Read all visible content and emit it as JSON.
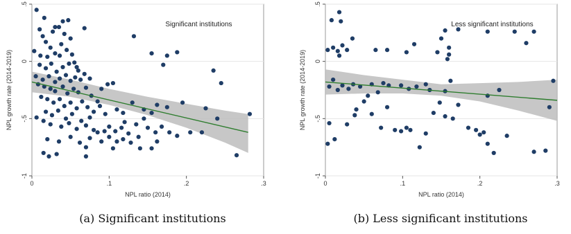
{
  "chart_data": [
    {
      "type": "scatter",
      "title": "Significant institutions",
      "xlabel": "NPL ratio (2014)",
      "ylabel": "NPL growth rate (2014-2019)",
      "xlim": [
        0,
        0.3
      ],
      "ylim": [
        -1,
        0.5
      ],
      "xticks": [
        0,
        0.1,
        0.2,
        0.3
      ],
      "xtick_labels": [
        "0",
        ".1",
        ".2",
        ".3"
      ],
      "yticks": [
        -1,
        -0.5,
        0,
        0.5
      ],
      "ytick_labels": [
        "-1",
        "-.5",
        "0",
        ".5"
      ],
      "grid": "horizontal",
      "marker_color": "#1f3d66",
      "fit_color": "#2e7d2e",
      "ci_color": "#bdbdbd",
      "fit_line": {
        "x": [
          0,
          0.28
        ],
        "y": [
          -0.18,
          -0.62
        ]
      },
      "ci_band": {
        "x": [
          0,
          0.05,
          0.1,
          0.15,
          0.2,
          0.25,
          0.28
        ],
        "lower": [
          -0.27,
          -0.31,
          -0.38,
          -0.47,
          -0.58,
          -0.71,
          -0.8
        ],
        "upper": [
          -0.09,
          -0.16,
          -0.24,
          -0.31,
          -0.37,
          -0.43,
          -0.46
        ]
      },
      "points": [
        {
          "x": 0.006,
          "y": 0.45
        },
        {
          "x": 0.016,
          "y": 0.38
        },
        {
          "x": 0.01,
          "y": 0.28
        },
        {
          "x": 0.014,
          "y": 0.22
        },
        {
          "x": 0.027,
          "y": 0.26
        },
        {
          "x": 0.018,
          "y": 0.17
        },
        {
          "x": 0.024,
          "y": 0.12
        },
        {
          "x": 0.03,
          "y": 0.3
        },
        {
          "x": 0.035,
          "y": 0.3
        },
        {
          "x": 0.04,
          "y": 0.35
        },
        {
          "x": 0.047,
          "y": 0.36
        },
        {
          "x": 0.042,
          "y": 0.24
        },
        {
          "x": 0.038,
          "y": 0.15
        },
        {
          "x": 0.05,
          "y": 0.2
        },
        {
          "x": 0.003,
          "y": 0.09
        },
        {
          "x": 0.011,
          "y": 0.05
        },
        {
          "x": 0.02,
          "y": 0.04
        },
        {
          "x": 0.03,
          "y": 0.07
        },
        {
          "x": 0.036,
          "y": 0.05
        },
        {
          "x": 0.045,
          "y": 0.1
        },
        {
          "x": 0.052,
          "y": 0.06
        },
        {
          "x": 0.055,
          "y": -0.01
        },
        {
          "x": 0.068,
          "y": 0.29
        },
        {
          "x": 0.01,
          "y": -0.03
        },
        {
          "x": 0.018,
          "y": -0.06
        },
        {
          "x": 0.025,
          "y": -0.02
        },
        {
          "x": 0.032,
          "y": -0.09
        },
        {
          "x": 0.04,
          "y": -0.05
        },
        {
          "x": 0.048,
          "y": -0.02
        },
        {
          "x": 0.058,
          "y": -0.05
        },
        {
          "x": 0.06,
          "y": -0.08
        },
        {
          "x": 0.005,
          "y": -0.13
        },
        {
          "x": 0.014,
          "y": -0.16
        },
        {
          "x": 0.022,
          "y": -0.13
        },
        {
          "x": 0.03,
          "y": -0.18
        },
        {
          "x": 0.036,
          "y": -0.15
        },
        {
          "x": 0.044,
          "y": -0.12
        },
        {
          "x": 0.05,
          "y": -0.17
        },
        {
          "x": 0.056,
          "y": -0.14
        },
        {
          "x": 0.063,
          "y": -0.16
        },
        {
          "x": 0.068,
          "y": -0.11
        },
        {
          "x": 0.075,
          "y": -0.15
        },
        {
          "x": 0.008,
          "y": -0.2
        },
        {
          "x": 0.016,
          "y": -0.22
        },
        {
          "x": 0.024,
          "y": -0.24
        },
        {
          "x": 0.03,
          "y": -0.26
        },
        {
          "x": 0.04,
          "y": -0.22
        },
        {
          "x": 0.046,
          "y": -0.28
        },
        {
          "x": 0.054,
          "y": -0.24
        },
        {
          "x": 0.06,
          "y": -0.27
        },
        {
          "x": 0.07,
          "y": -0.23
        },
        {
          "x": 0.077,
          "y": -0.3
        },
        {
          "x": 0.09,
          "y": -0.24
        },
        {
          "x": 0.098,
          "y": -0.2
        },
        {
          "x": 0.105,
          "y": -0.19
        },
        {
          "x": 0.085,
          "y": -0.35
        },
        {
          "x": 0.012,
          "y": -0.31
        },
        {
          "x": 0.02,
          "y": -0.33
        },
        {
          "x": 0.028,
          "y": -0.36
        },
        {
          "x": 0.036,
          "y": -0.33
        },
        {
          "x": 0.042,
          "y": -0.39
        },
        {
          "x": 0.05,
          "y": -0.36
        },
        {
          "x": 0.058,
          "y": -0.41
        },
        {
          "x": 0.065,
          "y": -0.35
        },
        {
          "x": 0.072,
          "y": -0.4
        },
        {
          "x": 0.08,
          "y": -0.44
        },
        {
          "x": 0.088,
          "y": -0.39
        },
        {
          "x": 0.095,
          "y": -0.46
        },
        {
          "x": 0.11,
          "y": -0.42
        },
        {
          "x": 0.018,
          "y": -0.44
        },
        {
          "x": 0.026,
          "y": -0.47
        },
        {
          "x": 0.034,
          "y": -0.43
        },
        {
          "x": 0.044,
          "y": -0.5
        },
        {
          "x": 0.052,
          "y": -0.46
        },
        {
          "x": 0.064,
          "y": -0.52
        },
        {
          "x": 0.075,
          "y": -0.49
        },
        {
          "x": 0.006,
          "y": -0.49
        },
        {
          "x": 0.015,
          "y": -0.52
        },
        {
          "x": 0.024,
          "y": -0.55
        },
        {
          "x": 0.038,
          "y": -0.57
        },
        {
          "x": 0.048,
          "y": -0.54
        },
        {
          "x": 0.058,
          "y": -0.59
        },
        {
          "x": 0.07,
          "y": -0.56
        },
        {
          "x": 0.08,
          "y": -0.6
        },
        {
          "x": 0.094,
          "y": -0.61
        },
        {
          "x": 0.1,
          "y": -0.57
        },
        {
          "x": 0.108,
          "y": -0.61
        },
        {
          "x": 0.116,
          "y": -0.58
        },
        {
          "x": 0.12,
          "y": -0.53
        },
        {
          "x": 0.125,
          "y": -0.63
        },
        {
          "x": 0.135,
          "y": -0.55
        },
        {
          "x": 0.145,
          "y": -0.5
        },
        {
          "x": 0.15,
          "y": -0.58
        },
        {
          "x": 0.16,
          "y": -0.62
        },
        {
          "x": 0.168,
          "y": -0.57
        },
        {
          "x": 0.02,
          "y": -0.68
        },
        {
          "x": 0.035,
          "y": -0.7
        },
        {
          "x": 0.05,
          "y": -0.66
        },
        {
          "x": 0.062,
          "y": -0.71
        },
        {
          "x": 0.075,
          "y": -0.67
        },
        {
          "x": 0.09,
          "y": -0.7
        },
        {
          "x": 0.1,
          "y": -0.66
        },
        {
          "x": 0.11,
          "y": -0.7
        },
        {
          "x": 0.118,
          "y": -0.68
        },
        {
          "x": 0.128,
          "y": -0.71
        },
        {
          "x": 0.138,
          "y": -0.66
        },
        {
          "x": 0.015,
          "y": -0.8
        },
        {
          "x": 0.022,
          "y": -0.83
        },
        {
          "x": 0.032,
          "y": -0.81
        },
        {
          "x": 0.07,
          "y": -0.83
        },
        {
          "x": 0.118,
          "y": -0.45
        },
        {
          "x": 0.13,
          "y": -0.36
        },
        {
          "x": 0.145,
          "y": -0.42
        },
        {
          "x": 0.155,
          "y": -0.45
        },
        {
          "x": 0.162,
          "y": -0.38
        },
        {
          "x": 0.175,
          "y": -0.4
        },
        {
          "x": 0.132,
          "y": 0.22
        },
        {
          "x": 0.155,
          "y": 0.07
        },
        {
          "x": 0.175,
          "y": 0.05
        },
        {
          "x": 0.188,
          "y": 0.08
        },
        {
          "x": 0.17,
          "y": -0.03
        },
        {
          "x": 0.195,
          "y": -0.36
        },
        {
          "x": 0.178,
          "y": -0.62
        },
        {
          "x": 0.188,
          "y": -0.65
        },
        {
          "x": 0.205,
          "y": -0.62
        },
        {
          "x": 0.22,
          "y": -0.62
        },
        {
          "x": 0.225,
          "y": -0.41
        },
        {
          "x": 0.235,
          "y": -0.08
        },
        {
          "x": 0.245,
          "y": -0.19
        },
        {
          "x": 0.24,
          "y": -0.5
        },
        {
          "x": 0.265,
          "y": -0.82
        },
        {
          "x": 0.282,
          "y": -0.46
        },
        {
          "x": 0.085,
          "y": -0.62
        },
        {
          "x": 0.14,
          "y": -0.76
        },
        {
          "x": 0.155,
          "y": -0.76
        },
        {
          "x": 0.162,
          "y": -0.7
        },
        {
          "x": 0.07,
          "y": -0.75
        },
        {
          "x": 0.105,
          "y": -0.76
        }
      ]
    },
    {
      "type": "scatter",
      "title": "Less significant institutions",
      "xlabel": "NPL ratio (2014)",
      "ylabel": "NPL growth rate (2014-2019)",
      "xlim": [
        0,
        0.3
      ],
      "ylim": [
        -1,
        0.5
      ],
      "xticks": [
        0,
        0.1,
        0.2,
        0.3
      ],
      "xtick_labels": [
        "0",
        ".1",
        ".2",
        ".3"
      ],
      "yticks": [
        -1,
        -0.5,
        0,
        0.5
      ],
      "ytick_labels": [
        "-1",
        "-.5",
        "0",
        ".5"
      ],
      "grid": "horizontal",
      "marker_color": "#1f3d66",
      "fit_color": "#2e7d2e",
      "ci_color": "#bdbdbd",
      "fit_line": {
        "x": [
          0,
          0.3
        ],
        "y": [
          -0.18,
          -0.34
        ]
      },
      "ci_band": {
        "x": [
          0,
          0.05,
          0.1,
          0.15,
          0.2,
          0.25,
          0.3
        ],
        "lower": [
          -0.29,
          -0.28,
          -0.28,
          -0.3,
          -0.35,
          -0.43,
          -0.52
        ],
        "upper": [
          -0.07,
          -0.12,
          -0.16,
          -0.2,
          -0.19,
          -0.18,
          -0.16
        ]
      },
      "points": [
        {
          "x": 0.008,
          "y": 0.36
        },
        {
          "x": 0.018,
          "y": 0.43
        },
        {
          "x": 0.02,
          "y": 0.35
        },
        {
          "x": 0.003,
          "y": 0.1
        },
        {
          "x": 0.01,
          "y": 0.12
        },
        {
          "x": 0.016,
          "y": 0.09
        },
        {
          "x": 0.022,
          "y": 0.14
        },
        {
          "x": 0.028,
          "y": 0.1
        },
        {
          "x": 0.018,
          "y": 0.05
        },
        {
          "x": 0.035,
          "y": 0.2
        },
        {
          "x": 0.065,
          "y": 0.1
        },
        {
          "x": 0.08,
          "y": 0.1
        },
        {
          "x": 0.105,
          "y": 0.08
        },
        {
          "x": 0.115,
          "y": 0.15
        },
        {
          "x": 0.15,
          "y": 0.2
        },
        {
          "x": 0.155,
          "y": 0.27
        },
        {
          "x": 0.16,
          "y": 0.12
        },
        {
          "x": 0.172,
          "y": 0.28
        },
        {
          "x": 0.21,
          "y": 0.26
        },
        {
          "x": 0.245,
          "y": 0.26
        },
        {
          "x": 0.27,
          "y": 0.26
        },
        {
          "x": 0.26,
          "y": 0.16
        },
        {
          "x": 0.16,
          "y": 0.06
        },
        {
          "x": 0.145,
          "y": 0.08
        },
        {
          "x": 0.158,
          "y": 0.02
        },
        {
          "x": 0.005,
          "y": -0.22
        },
        {
          "x": 0.01,
          "y": -0.16
        },
        {
          "x": 0.016,
          "y": -0.25
        },
        {
          "x": 0.022,
          "y": -0.21
        },
        {
          "x": 0.03,
          "y": -0.24
        },
        {
          "x": 0.036,
          "y": -0.2
        },
        {
          "x": 0.045,
          "y": -0.22
        },
        {
          "x": 0.055,
          "y": -0.3
        },
        {
          "x": 0.06,
          "y": -0.2
        },
        {
          "x": 0.068,
          "y": -0.27
        },
        {
          "x": 0.075,
          "y": -0.19
        },
        {
          "x": 0.082,
          "y": -0.21
        },
        {
          "x": 0.098,
          "y": -0.21
        },
        {
          "x": 0.108,
          "y": -0.24
        },
        {
          "x": 0.118,
          "y": -0.22
        },
        {
          "x": 0.13,
          "y": -0.2
        },
        {
          "x": 0.135,
          "y": -0.25
        },
        {
          "x": 0.155,
          "y": -0.26
        },
        {
          "x": 0.162,
          "y": -0.17
        },
        {
          "x": 0.05,
          "y": -0.35
        },
        {
          "x": 0.04,
          "y": -0.42
        },
        {
          "x": 0.038,
          "y": -0.47
        },
        {
          "x": 0.028,
          "y": -0.55
        },
        {
          "x": 0.005,
          "y": -0.54
        },
        {
          "x": 0.003,
          "y": -0.72
        },
        {
          "x": 0.012,
          "y": -0.68
        },
        {
          "x": 0.06,
          "y": -0.46
        },
        {
          "x": 0.072,
          "y": -0.58
        },
        {
          "x": 0.09,
          "y": -0.6
        },
        {
          "x": 0.098,
          "y": -0.61
        },
        {
          "x": 0.105,
          "y": -0.58
        },
        {
          "x": 0.11,
          "y": -0.6
        },
        {
          "x": 0.122,
          "y": -0.75
        },
        {
          "x": 0.13,
          "y": -0.63
        },
        {
          "x": 0.14,
          "y": -0.45
        },
        {
          "x": 0.148,
          "y": -0.36
        },
        {
          "x": 0.155,
          "y": -0.48
        },
        {
          "x": 0.165,
          "y": -0.5
        },
        {
          "x": 0.172,
          "y": -0.38
        },
        {
          "x": 0.185,
          "y": -0.58
        },
        {
          "x": 0.195,
          "y": -0.6
        },
        {
          "x": 0.2,
          "y": -0.64
        },
        {
          "x": 0.205,
          "y": -0.62
        },
        {
          "x": 0.21,
          "y": -0.72
        },
        {
          "x": 0.218,
          "y": -0.8
        },
        {
          "x": 0.225,
          "y": -0.25
        },
        {
          "x": 0.235,
          "y": -0.65
        },
        {
          "x": 0.27,
          "y": -0.79
        },
        {
          "x": 0.285,
          "y": -0.78
        },
        {
          "x": 0.29,
          "y": -0.4
        },
        {
          "x": 0.295,
          "y": -0.17
        },
        {
          "x": 0.21,
          "y": -0.3
        },
        {
          "x": 0.08,
          "y": -0.4
        }
      ]
    }
  ],
  "captions": [
    "(a) Significant institutions",
    "(b) Less significant institutions"
  ]
}
